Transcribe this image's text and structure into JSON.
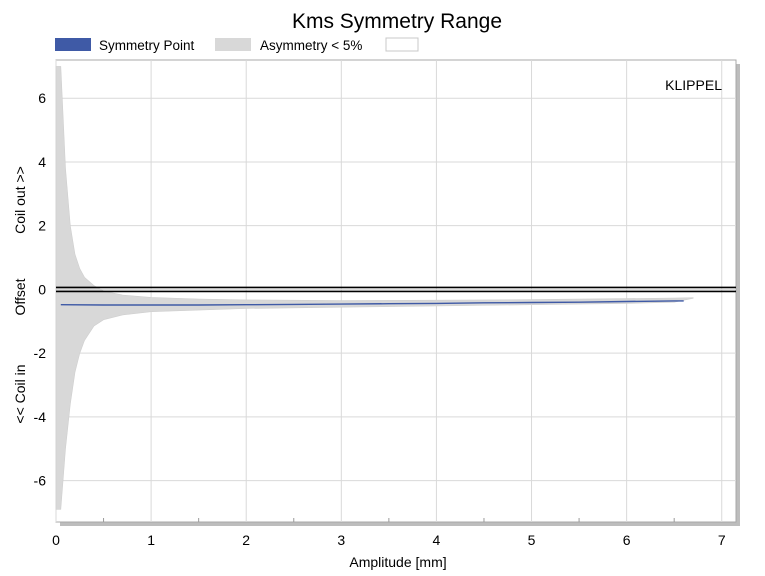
{
  "chart_data": {
    "type": "area",
    "title": "Kms Symmetry Range",
    "watermark": "KLIPPEL",
    "xlabel": "Amplitude [mm]",
    "ylabel": {
      "top": "Coil out >>",
      "middle": "Offset",
      "bottom": "<< Coil in"
    },
    "xlim": [
      0,
      7.15
    ],
    "ylim": [
      -7.3,
      7.2
    ],
    "x_ticks": [
      "0",
      "1",
      "2",
      "3",
      "4",
      "5",
      "6",
      "7"
    ],
    "y_ticks": [
      "6",
      "4",
      "2",
      "0",
      "-2",
      "-4",
      "-6"
    ],
    "grid": true,
    "legend_placement": "top-left",
    "legend": [
      {
        "label": "Symmetry Point",
        "color": "#3f5aa6"
      },
      {
        "label": "Asymmetry < 5%",
        "color": "#d8d8d8"
      },
      {
        "label": "",
        "color": "#ffffff"
      }
    ],
    "zero_line_color": "#000000",
    "series": [
      {
        "name": "Symmetry Point",
        "color": "#3f5aa6",
        "x": [
          0.05,
          0.5,
          1.0,
          1.5,
          2.0,
          2.5,
          3.0,
          3.5,
          4.0,
          4.5,
          5.0,
          5.5,
          6.0,
          6.5,
          6.6
        ],
        "y": [
          -0.48,
          -0.49,
          -0.49,
          -0.49,
          -0.48,
          -0.47,
          -0.46,
          -0.45,
          -0.44,
          -0.42,
          -0.41,
          -0.4,
          -0.38,
          -0.36,
          -0.36
        ]
      },
      {
        "name": "Asymmetry < 5%",
        "color": "#d8d8d8",
        "x": [
          0.0,
          0.05,
          0.1,
          0.15,
          0.2,
          0.25,
          0.3,
          0.4,
          0.5,
          0.7,
          1.0,
          1.5,
          2.0,
          3.0,
          4.0,
          5.0,
          6.0,
          6.5,
          6.7
        ],
        "upper": [
          7.0,
          7.0,
          3.8,
          2.0,
          1.1,
          0.65,
          0.38,
          0.12,
          -0.05,
          -0.18,
          -0.25,
          -0.3,
          -0.33,
          -0.35,
          -0.34,
          -0.32,
          -0.29,
          -0.27,
          -0.26
        ],
        "lower": [
          -6.9,
          -6.9,
          -5.0,
          -3.6,
          -2.6,
          -2.0,
          -1.6,
          -1.15,
          -0.95,
          -0.8,
          -0.7,
          -0.65,
          -0.6,
          -0.56,
          -0.52,
          -0.48,
          -0.44,
          -0.4,
          -0.28
        ]
      }
    ]
  }
}
